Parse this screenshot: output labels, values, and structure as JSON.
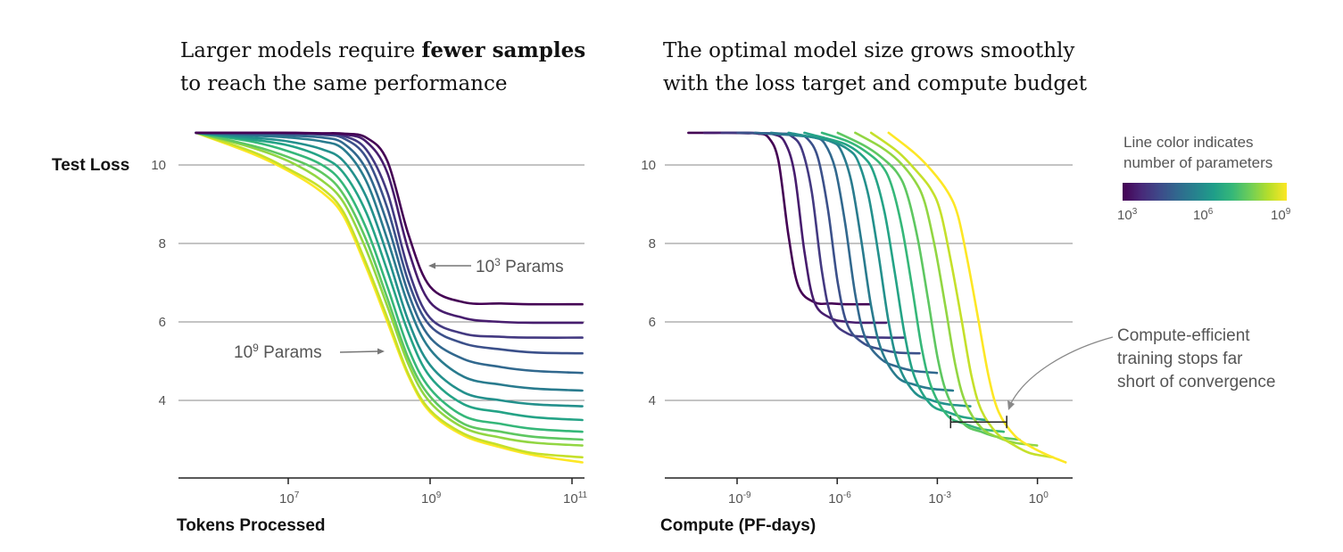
{
  "titles": {
    "left": {
      "line1_pre": "Larger models require ",
      "line1_bold": "fewer samples",
      "line2": "to reach the same performance"
    },
    "right": {
      "line1": "The optimal model size grows smoothly",
      "line2": "with the loss target and compute budget"
    }
  },
  "legend": {
    "title_line1": "Line color indicates",
    "title_line2": "number of parameters",
    "colormap": [
      "#440154",
      "#482878",
      "#3e4989",
      "#31688e",
      "#26828e",
      "#1f9e89",
      "#35b779",
      "#6ece58",
      "#b5de2b",
      "#fde725"
    ],
    "ticks": [
      {
        "base": "10",
        "exp": "3"
      },
      {
        "base": "10",
        "exp": "6"
      },
      {
        "base": "10",
        "exp": "9"
      }
    ]
  },
  "annotations": {
    "small_model": {
      "base": "10",
      "exp": "3",
      "text": " Params"
    },
    "large_model": {
      "base": "10",
      "exp": "9",
      "text": " Params"
    },
    "compute_efficient": [
      "Compute-efficient",
      "training stops far",
      "short of convergence"
    ]
  },
  "chart_data": [
    {
      "type": "line",
      "title": "",
      "xlabel": "Tokens Processed",
      "ylabel": "Test Loss",
      "xscale": "log",
      "xlim": [
        500000.0,
        140000000000.0
      ],
      "ylim": [
        2.02,
        10.82
      ],
      "grid": "horizontal",
      "xticks": [
        {
          "base": "10",
          "exp": "7",
          "value": 10000000.0
        },
        {
          "base": "10",
          "exp": "9",
          "value": 1000000000.0
        },
        {
          "base": "10",
          "exp": "11",
          "value": 100000000000.0
        }
      ],
      "yticks": [
        {
          "label": "10",
          "value": 10
        },
        {
          "label": "8",
          "value": 8
        },
        {
          "label": "6",
          "value": 6
        },
        {
          "label": "4",
          "value": 4
        }
      ],
      "x": [
        500000.0,
        3000000.0,
        10000000.0,
        30000000.0,
        60000000.0,
        125000000.0,
        250000000.0,
        500000000.0,
        1000000000.0,
        3000000000.0,
        10000000000.0,
        30000000000.0,
        140000000000.0
      ],
      "series": [
        {
          "params": 1000.0,
          "y": [
            10.82,
            10.82,
            10.82,
            10.81,
            10.8,
            10.7,
            10.1,
            8.2,
            6.9,
            6.5,
            6.47,
            6.45,
            6.45
          ]
        },
        {
          "params": 3000.0,
          "y": [
            10.82,
            10.82,
            10.82,
            10.8,
            10.78,
            10.6,
            9.8,
            7.8,
            6.5,
            6.1,
            6.0,
            5.98,
            5.98
          ]
        },
        {
          "params": 10000.0,
          "y": [
            10.82,
            10.82,
            10.81,
            10.79,
            10.74,
            10.4,
            9.3,
            7.3,
            6.1,
            5.7,
            5.62,
            5.6,
            5.6
          ]
        },
        {
          "params": 30000.0,
          "y": [
            10.82,
            10.81,
            10.8,
            10.77,
            10.68,
            10.2,
            8.9,
            7.0,
            5.9,
            5.45,
            5.3,
            5.22,
            5.2
          ]
        },
        {
          "params": 100000.0,
          "y": [
            10.82,
            10.78,
            10.75,
            10.7,
            10.55,
            9.9,
            8.5,
            6.7,
            5.6,
            5.05,
            4.85,
            4.75,
            4.7
          ]
        },
        {
          "params": 300000.0,
          "y": [
            10.82,
            10.75,
            10.7,
            10.6,
            10.4,
            9.6,
            8.1,
            6.4,
            5.3,
            4.6,
            4.4,
            4.3,
            4.25
          ]
        },
        {
          "params": 1000000.0,
          "y": [
            10.82,
            10.7,
            10.6,
            10.4,
            10.1,
            9.2,
            7.7,
            6.0,
            4.9,
            4.2,
            4.0,
            3.9,
            3.85
          ]
        },
        {
          "params": 3000000.0,
          "y": [
            10.82,
            10.65,
            10.5,
            10.2,
            9.8,
            8.8,
            7.3,
            5.7,
            4.6,
            3.9,
            3.7,
            3.57,
            3.5
          ]
        },
        {
          "params": 10000000.0,
          "y": [
            10.82,
            10.6,
            10.35,
            10.0,
            9.5,
            8.4,
            6.9,
            5.3,
            4.3,
            3.6,
            3.4,
            3.27,
            3.2
          ]
        },
        {
          "params": 30000000.0,
          "y": [
            10.82,
            10.5,
            10.2,
            9.8,
            9.25,
            8.1,
            6.6,
            5.05,
            4.1,
            3.4,
            3.2,
            3.07,
            3.0
          ]
        },
        {
          "params": 100000000.0,
          "y": [
            10.82,
            10.45,
            10.1,
            9.6,
            9.05,
            7.85,
            6.4,
            4.9,
            3.95,
            3.3,
            3.05,
            2.92,
            2.85
          ]
        },
        {
          "params": 300000000.0,
          "y": [
            10.82,
            10.35,
            9.9,
            9.4,
            8.8,
            7.5,
            6.1,
            4.65,
            3.75,
            3.15,
            2.85,
            2.65,
            2.55
          ]
        },
        {
          "params": 1000000000.0,
          "y": [
            10.82,
            10.3,
            9.85,
            9.3,
            8.7,
            7.4,
            6.0,
            4.6,
            3.7,
            3.1,
            2.8,
            2.6,
            2.42
          ]
        }
      ]
    },
    {
      "type": "line",
      "title": "",
      "xlabel": "Compute (PF-days)",
      "ylabel": "",
      "xscale": "log",
      "xlim": [
        2.5e-11,
        7.0
      ],
      "ylim": [
        2.02,
        10.82
      ],
      "grid": "horizontal",
      "xticks": [
        {
          "base": "10",
          "exp": "-9",
          "value": 1e-09
        },
        {
          "base": "10",
          "exp": "-6",
          "value": 1e-06
        },
        {
          "base": "10",
          "exp": "-3",
          "value": 0.001
        },
        {
          "base": "10",
          "exp": "0",
          "value": 1
        }
      ],
      "yticks": [
        {
          "label": "10",
          "value": 10
        },
        {
          "label": "8",
          "value": 8
        },
        {
          "label": "6",
          "value": 6
        },
        {
          "label": "4",
          "value": 4
        }
      ],
      "series": [
        {
          "params": 1000.0,
          "x": [
            3.47e-11,
            2.09e-10,
            6.92e-10,
            2.09e-09,
            4.17e-09,
            8.71e-09,
            1.74e-08,
            3.47e-08,
            6.92e-08,
            2.09e-07,
            6.92e-07,
            2.09e-06,
            9.77e-06
          ],
          "y": [
            10.82,
            10.82,
            10.82,
            10.81,
            10.8,
            10.7,
            10.1,
            8.2,
            6.9,
            6.5,
            6.47,
            6.45,
            6.45
          ]
        },
        {
          "params": 3000.0,
          "x": [
            1.04e-10,
            6.27e-10,
            2.08e-09,
            6.27e-09,
            1.25e-08,
            2.61e-08,
            5.22e-08,
            1.04e-07,
            2.08e-07,
            6.27e-07,
            2.08e-06,
            6.27e-06,
            2.93e-05
          ],
          "y": [
            10.82,
            10.82,
            10.82,
            10.8,
            10.78,
            10.6,
            9.8,
            7.8,
            6.5,
            6.1,
            6.0,
            5.98,
            5.98
          ]
        },
        {
          "params": 10000.0,
          "x": [
            3.47e-10,
            2.09e-09,
            6.92e-09,
            2.09e-08,
            4.17e-08,
            8.71e-08,
            1.74e-07,
            3.47e-07,
            6.92e-07,
            2.09e-06,
            6.92e-06,
            2.09e-05,
            9.77e-05
          ],
          "y": [
            10.82,
            10.82,
            10.81,
            10.79,
            10.74,
            10.4,
            9.3,
            7.3,
            6.1,
            5.7,
            5.62,
            5.6,
            5.6
          ]
        },
        {
          "params": 30000.0,
          "x": [
            1.04e-09,
            6.27e-09,
            2.08e-08,
            6.27e-08,
            1.25e-07,
            2.61e-07,
            5.22e-07,
            1.04e-06,
            2.08e-06,
            6.27e-06,
            2.08e-05,
            6.27e-05,
            0.000293
          ],
          "y": [
            10.82,
            10.81,
            10.8,
            10.77,
            10.68,
            10.2,
            8.9,
            7.0,
            5.9,
            5.45,
            5.3,
            5.22,
            5.2
          ]
        },
        {
          "params": 100000.0,
          "x": [
            3.47e-09,
            2.09e-08,
            6.92e-08,
            2.09e-07,
            4.17e-07,
            8.71e-07,
            1.74e-06,
            3.47e-06,
            6.92e-06,
            2.09e-05,
            6.92e-05,
            0.000209,
            0.000977
          ],
          "y": [
            10.82,
            10.78,
            10.75,
            10.7,
            10.55,
            9.9,
            8.5,
            6.7,
            5.6,
            5.05,
            4.85,
            4.75,
            4.7
          ]
        },
        {
          "params": 300000.0,
          "x": [
            1.04e-08,
            6.27e-08,
            2.08e-07,
            6.27e-07,
            1.25e-06,
            2.61e-06,
            5.22e-06,
            1.04e-05,
            2.08e-05,
            6.27e-05,
            0.000208,
            0.000627,
            0.00293
          ],
          "y": [
            10.82,
            10.75,
            10.7,
            10.6,
            10.4,
            9.6,
            8.1,
            6.4,
            5.3,
            4.6,
            4.4,
            4.3,
            4.25
          ]
        },
        {
          "params": 1000000.0,
          "x": [
            3.47e-08,
            2.09e-07,
            6.92e-07,
            2.09e-06,
            4.17e-06,
            8.71e-06,
            1.74e-05,
            3.47e-05,
            6.92e-05,
            0.000209,
            0.000692,
            0.00209,
            0.00977
          ],
          "y": [
            10.82,
            10.7,
            10.6,
            10.4,
            10.1,
            9.2,
            7.7,
            6.0,
            4.9,
            4.2,
            4.0,
            3.9,
            3.85
          ]
        },
        {
          "params": 3000000.0,
          "x": [
            1.04e-07,
            6.27e-07,
            2.08e-06,
            6.27e-06,
            1.25e-05,
            2.61e-05,
            5.22e-05,
            0.000104,
            0.000208,
            0.000627,
            0.00208,
            0.00627,
            0.0293
          ],
          "y": [
            10.82,
            10.65,
            10.5,
            10.2,
            9.8,
            8.8,
            7.3,
            5.7,
            4.6,
            3.9,
            3.7,
            3.57,
            3.5
          ]
        },
        {
          "params": 10000000.0,
          "x": [
            3.47e-07,
            2.09e-06,
            6.92e-06,
            2.09e-05,
            4.17e-05,
            8.71e-05,
            0.000174,
            0.000347,
            0.000692,
            0.00209,
            0.00692,
            0.0209,
            0.0977
          ],
          "y": [
            10.82,
            10.6,
            10.35,
            10.0,
            9.5,
            8.4,
            6.9,
            5.3,
            4.3,
            3.6,
            3.4,
            3.27,
            3.2
          ]
        },
        {
          "params": 30000000.0,
          "x": [
            1.04e-06,
            6.27e-06,
            2.08e-05,
            6.27e-05,
            0.000125,
            0.000261,
            0.000522,
            0.00104,
            0.00208,
            0.00627,
            0.0208,
            0.0627,
            0.293
          ],
          "y": [
            10.82,
            10.5,
            10.2,
            9.8,
            9.25,
            8.1,
            6.6,
            5.05,
            4.1,
            3.4,
            3.2,
            3.07,
            3.0
          ]
        },
        {
          "params": 100000000.0,
          "x": [
            3.47e-06,
            2.09e-05,
            6.92e-05,
            0.000209,
            0.000417,
            0.000871,
            0.00174,
            0.00347,
            0.00692,
            0.0209,
            0.0692,
            0.209,
            0.977
          ],
          "y": [
            10.82,
            10.45,
            10.1,
            9.6,
            9.05,
            7.85,
            6.4,
            4.9,
            3.95,
            3.3,
            3.05,
            2.92,
            2.85
          ]
        },
        {
          "params": 300000000.0,
          "x": [
            1.04e-05,
            6.27e-05,
            0.000208,
            0.000627,
            0.00125,
            0.00261,
            0.00522,
            0.0104,
            0.0208,
            0.0627,
            0.208,
            0.627,
            2.93
          ],
          "y": [
            10.82,
            10.35,
            9.9,
            9.4,
            8.8,
            7.5,
            6.1,
            4.65,
            3.75,
            3.15,
            2.85,
            2.65,
            2.55
          ]
        },
        {
          "params": 1000000000.0,
          "x": [
            3.47e-05,
            0.000209,
            0.000692,
            0.00209,
            0.00417,
            0.00871,
            0.0174,
            0.0347,
            0.0692,
            0.209,
            0.692,
            2.09,
            7.0
          ],
          "y": [
            10.82,
            10.3,
            9.85,
            9.3,
            8.7,
            7.4,
            6.0,
            4.6,
            3.7,
            3.1,
            2.8,
            2.6,
            2.42
          ]
        }
      ],
      "annotation_range": {
        "x": [
          0.0025,
          0.12
        ],
        "y": 3.45
      }
    }
  ]
}
